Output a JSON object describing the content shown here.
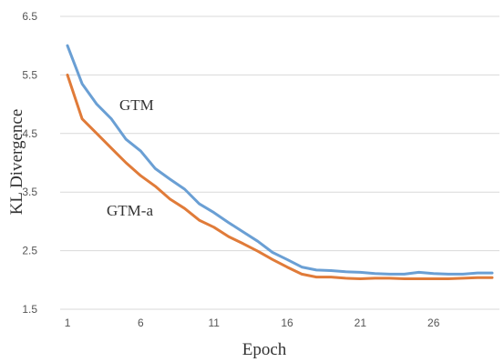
{
  "chart_data": {
    "type": "line",
    "xlabel": "Epoch",
    "ylabel": "KL Divergence",
    "xlim": [
      1,
      30
    ],
    "ylim": [
      1.5,
      6.5
    ],
    "x_ticks": [
      "1",
      "6",
      "11",
      "16",
      "21",
      "26"
    ],
    "y_ticks": [
      "1.5",
      "2.5",
      "3.5",
      "4.5",
      "5.5",
      "6.5"
    ],
    "grid": true,
    "x": [
      1,
      2,
      3,
      4,
      5,
      6,
      7,
      8,
      9,
      10,
      11,
      12,
      13,
      14,
      15,
      16,
      17,
      18,
      19,
      20,
      21,
      22,
      23,
      24,
      25,
      26,
      27,
      28,
      29,
      30
    ],
    "series": [
      {
        "name": "GTM",
        "color": "#6a9fd4",
        "values": [
          6.0,
          5.35,
          5.0,
          4.75,
          4.4,
          4.2,
          3.9,
          3.72,
          3.55,
          3.3,
          3.15,
          2.98,
          2.82,
          2.66,
          2.47,
          2.35,
          2.22,
          2.17,
          2.16,
          2.14,
          2.13,
          2.11,
          2.1,
          2.1,
          2.13,
          2.11,
          2.1,
          2.1,
          2.12,
          2.12
        ]
      },
      {
        "name": "GTM-a",
        "color": "#e07b39",
        "values": [
          5.5,
          4.75,
          4.5,
          4.25,
          4.0,
          3.78,
          3.6,
          3.38,
          3.22,
          3.02,
          2.9,
          2.74,
          2.62,
          2.49,
          2.35,
          2.22,
          2.1,
          2.05,
          2.05,
          2.03,
          2.02,
          2.03,
          2.03,
          2.02,
          2.02,
          2.02,
          2.02,
          2.03,
          2.04,
          2.04
        ]
      }
    ]
  }
}
